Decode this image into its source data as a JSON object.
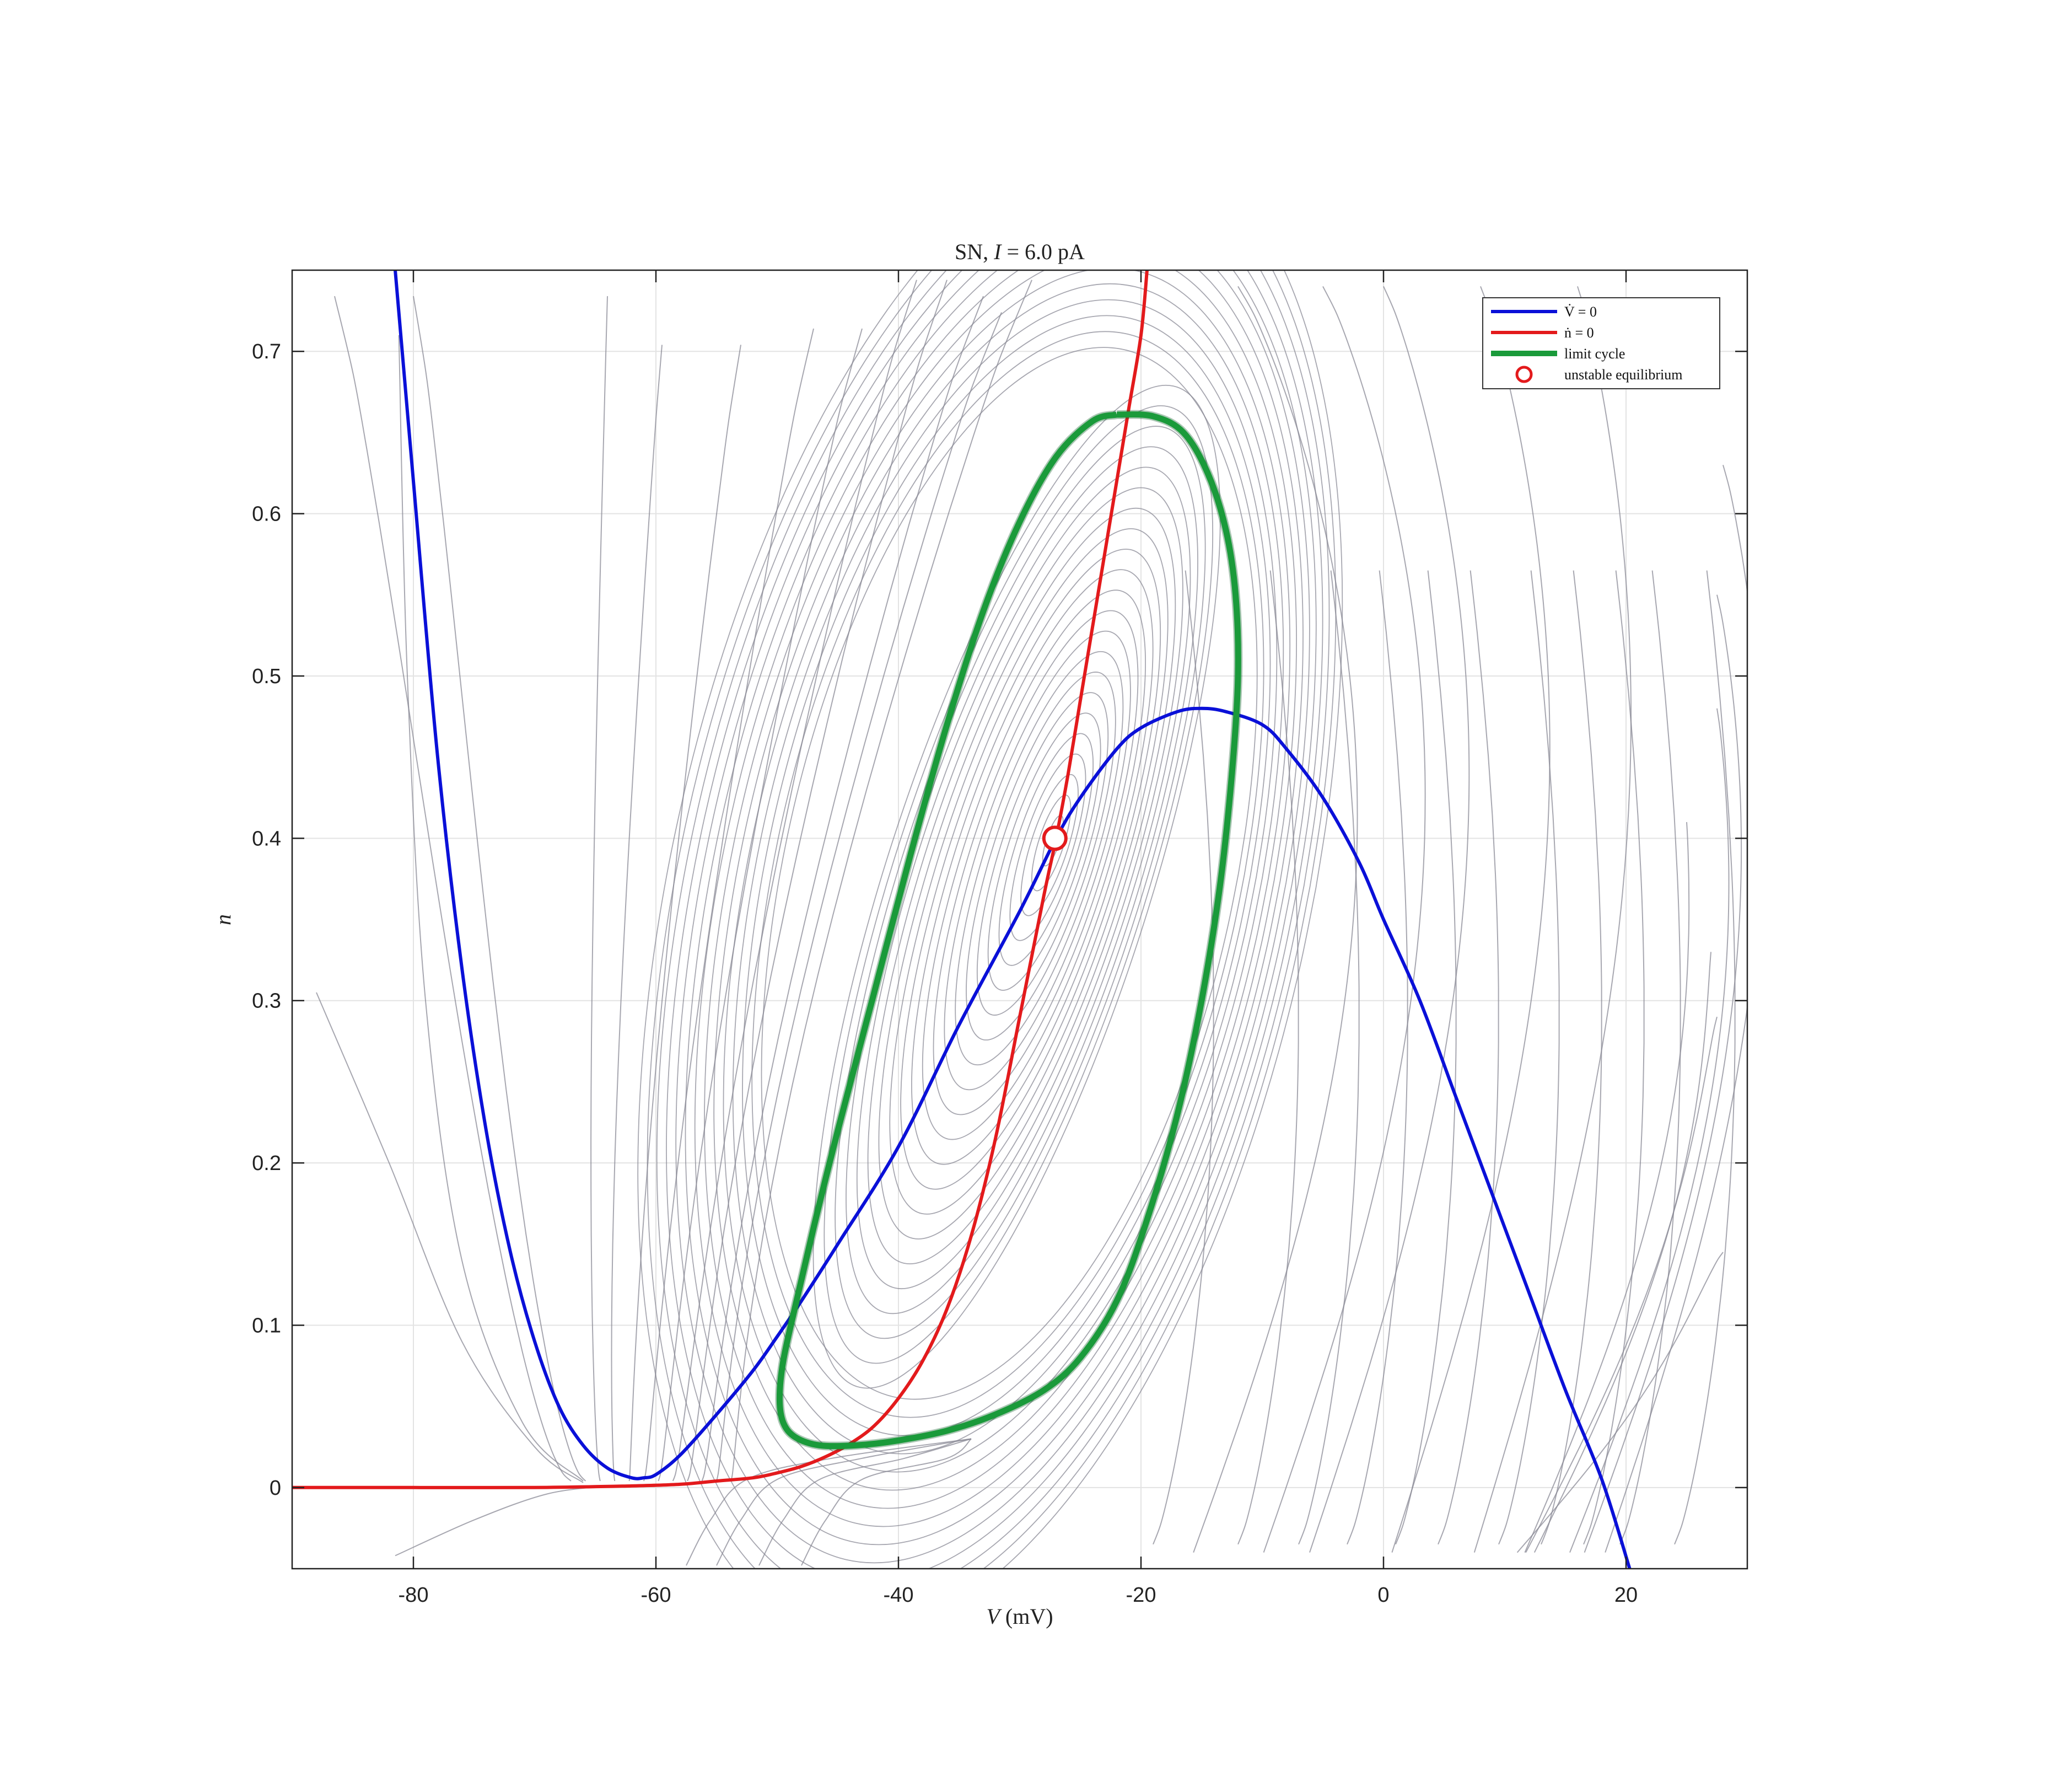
{
  "chart_data": {
    "type": "line",
    "title_prefix": "SN, ",
    "title_var": "I",
    "title_rest": " = 6.0 pA",
    "xlabel_var": "V",
    "xlabel_unit": " (mV)",
    "ylabel_var": "n",
    "xlim": [
      -90,
      30
    ],
    "ylim": [
      -0.05,
      0.75
    ],
    "xticks": [
      -80,
      -60,
      -40,
      -20,
      0,
      20
    ],
    "yticks": [
      0,
      0.1,
      0.2,
      0.3,
      0.4,
      0.5,
      0.6,
      0.7
    ],
    "grid": true,
    "legend_position": "top-right",
    "legend": [
      {
        "label": "V̇ = 0",
        "color": "#0a10d8"
      },
      {
        "label": "ṅ = 0",
        "color": "#e31a1c"
      },
      {
        "label": "limit cycle",
        "color": "#1a9a3a"
      },
      {
        "label": "unstable equilibrium",
        "color": "#e31a1c"
      }
    ],
    "series": [
      {
        "key": "v_nullcline",
        "color": "#0a10d8",
        "x": [
          -81.5,
          -80,
          -78,
          -76,
          -74,
          -72,
          -70,
          -68,
          -66,
          -64,
          -62,
          -61,
          -60,
          -58,
          -55,
          -52,
          -50,
          -48,
          -45,
          -40,
          -35,
          -30,
          -27,
          -25,
          -22,
          -20,
          -17,
          -15,
          -13,
          -10,
          -8,
          -5,
          -2,
          0,
          3,
          6,
          9,
          12,
          15,
          18,
          20.3
        ],
        "y": [
          0.75,
          0.62,
          0.45,
          0.32,
          0.22,
          0.145,
          0.09,
          0.05,
          0.026,
          0.012,
          0.006,
          0.006,
          0.008,
          0.02,
          0.045,
          0.072,
          0.093,
          0.115,
          0.15,
          0.21,
          0.285,
          0.355,
          0.4,
          0.425,
          0.455,
          0.468,
          0.478,
          0.48,
          0.478,
          0.47,
          0.455,
          0.425,
          0.385,
          0.35,
          0.3,
          0.24,
          0.18,
          0.12,
          0.06,
          0.005,
          -0.05
        ]
      },
      {
        "key": "n_nullcline",
        "color": "#e31a1c",
        "x": [
          -90,
          -80,
          -70,
          -62,
          -58,
          -55,
          -52,
          -50,
          -48,
          -46,
          -44,
          -42,
          -40,
          -38,
          -36,
          -34,
          -32,
          -30,
          -28,
          -27,
          -26,
          -25,
          -24,
          -23,
          -22,
          -21,
          -20,
          -19.5
        ],
        "y": [
          0,
          0,
          0,
          0.001,
          0.002,
          0.004,
          0.006,
          0.009,
          0.013,
          0.019,
          0.027,
          0.038,
          0.055,
          0.078,
          0.11,
          0.155,
          0.215,
          0.29,
          0.365,
          0.4,
          0.44,
          0.485,
          0.53,
          0.575,
          0.62,
          0.665,
          0.71,
          0.75
        ]
      },
      {
        "key": "limit_cycle",
        "color": "#1a9a3a",
        "x": [
          -22,
          -24,
          -27,
          -30,
          -33,
          -36,
          -39,
          -42,
          -45,
          -47,
          -48.5,
          -49.5,
          -49.8,
          -49.5,
          -48.5,
          -46.5,
          -43.5,
          -40,
          -36,
          -32,
          -28,
          -25,
          -22,
          -19.5,
          -17,
          -15,
          -13.5,
          -12.5,
          -12,
          -12.2,
          -13,
          -14.5,
          -16.5,
          -19,
          -22
        ],
        "y": [
          0.661,
          0.657,
          0.635,
          0.595,
          0.54,
          0.47,
          0.39,
          0.305,
          0.22,
          0.16,
          0.112,
          0.078,
          0.055,
          0.04,
          0.031,
          0.026,
          0.026,
          0.029,
          0.035,
          0.045,
          0.06,
          0.08,
          0.115,
          0.165,
          0.23,
          0.3,
          0.37,
          0.44,
          0.5,
          0.55,
          0.59,
          0.625,
          0.65,
          0.66,
          0.661
        ]
      }
    ],
    "equilibrium": {
      "x": -27.1,
      "y": 0.4,
      "type": "unstable"
    }
  }
}
